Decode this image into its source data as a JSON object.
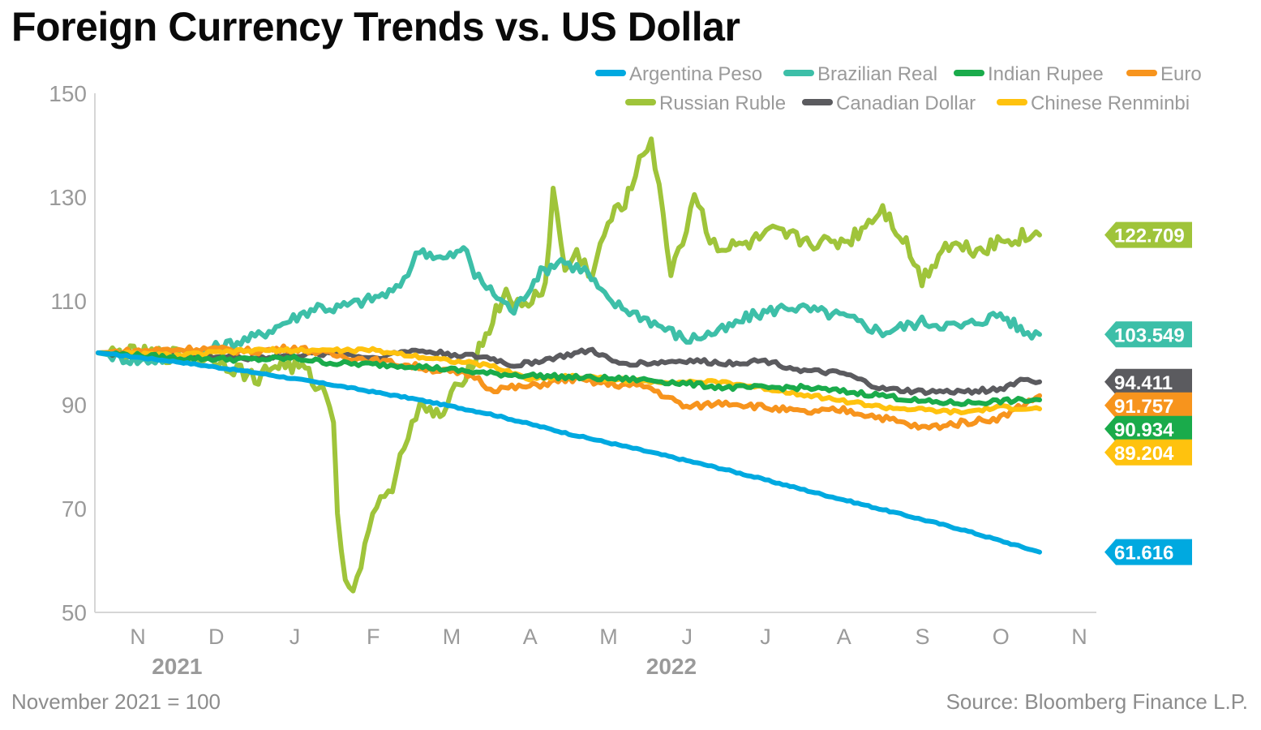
{
  "title": "Foreign Currency Trends vs. US Dollar",
  "footnote_left": "November 2021 = 100",
  "footnote_right": "Source: Bloomberg Finance L.P.",
  "chart_data": {
    "type": "line",
    "ylim": [
      50,
      150
    ],
    "yticks": [
      50,
      70,
      90,
      110,
      130,
      150
    ],
    "x_month_labels": [
      "N",
      "D",
      "J",
      "F",
      "M",
      "A",
      "M",
      "J",
      "J",
      "A",
      "S",
      "O",
      "N"
    ],
    "year_labels": [
      {
        "label": "2021",
        "month": "N"
      },
      {
        "label": "2022",
        "month": "M"
      }
    ],
    "grid": false,
    "legend": "top-right",
    "series": [
      {
        "name": "Argentina Peso",
        "color": "#00a9e0",
        "end_label": "61.616",
        "points": [
          [
            0,
            100
          ],
          [
            1,
            98.3
          ],
          [
            2,
            96.2
          ],
          [
            3,
            93.8
          ],
          [
            4,
            91.2
          ],
          [
            5,
            88.2
          ],
          [
            6,
            84.4
          ],
          [
            7,
            81
          ],
          [
            8,
            77.5
          ],
          [
            9,
            73.6
          ],
          [
            10,
            69.8
          ],
          [
            11,
            66
          ],
          [
            12,
            61.616
          ]
        ]
      },
      {
        "name": "Brazilian Real",
        "color": "#3dbfa8",
        "end_label": "103.549",
        "points": [
          [
            0,
            100
          ],
          [
            0.5,
            98.5
          ],
          [
            1,
            99
          ],
          [
            1.3,
            100
          ],
          [
            1.5,
            101
          ],
          [
            2,
            103
          ],
          [
            2.4,
            106
          ],
          [
            2.8,
            109
          ],
          [
            3,
            108.5
          ],
          [
            3.4,
            110
          ],
          [
            3.8,
            112
          ],
          [
            4,
            117
          ],
          [
            4.1,
            120
          ],
          [
            4.4,
            118
          ],
          [
            4.7,
            120
          ],
          [
            4.8,
            115
          ],
          [
            5,
            112
          ],
          [
            5.3,
            108
          ],
          [
            5.6,
            115
          ],
          [
            5.9,
            118
          ],
          [
            6,
            117
          ],
          [
            6.2,
            116
          ],
          [
            6.5,
            110
          ],
          [
            7,
            106.5
          ],
          [
            7.5,
            102.5
          ],
          [
            8,
            104.5
          ],
          [
            8.3,
            107
          ],
          [
            8.8,
            109
          ],
          [
            9.5,
            107
          ],
          [
            10,
            104
          ],
          [
            10.5,
            106
          ],
          [
            11,
            105
          ],
          [
            11.5,
            107.5
          ],
          [
            11.8,
            104
          ],
          [
            12,
            103.549
          ]
        ]
      },
      {
        "name": "Indian Rupee",
        "color": "#1aab4b",
        "end_label": "90.934",
        "points": [
          [
            0,
            100
          ],
          [
            1,
            99
          ],
          [
            2,
            98.7
          ],
          [
            2.5,
            99
          ],
          [
            3,
            98
          ],
          [
            4,
            97.5
          ],
          [
            5,
            96
          ],
          [
            6,
            95.3
          ],
          [
            7,
            94.8
          ],
          [
            8,
            93.3
          ],
          [
            9,
            93.3
          ],
          [
            10,
            91.8
          ],
          [
            10.5,
            90.6
          ],
          [
            11,
            90.3
          ],
          [
            11.5,
            90.7
          ],
          [
            12,
            90.934
          ]
        ]
      },
      {
        "name": "Euro",
        "color": "#f7941d",
        "end_label": "91.757",
        "points": [
          [
            0,
            100
          ],
          [
            0.7,
            100.5
          ],
          [
            1.3,
            100.8
          ],
          [
            2,
            100.3
          ],
          [
            2.5,
            101
          ],
          [
            3,
            99.6
          ],
          [
            4,
            97.5
          ],
          [
            4.8,
            95.5
          ],
          [
            5,
            93
          ],
          [
            5.5,
            93.5
          ],
          [
            6,
            95
          ],
          [
            6.5,
            94
          ],
          [
            7,
            93.5
          ],
          [
            7.5,
            89.5
          ],
          [
            8,
            90.5
          ],
          [
            9,
            88.5
          ],
          [
            9.5,
            89
          ],
          [
            10,
            87.5
          ],
          [
            10.5,
            85.5
          ],
          [
            11,
            86.5
          ],
          [
            11.5,
            87.5
          ],
          [
            12,
            91.757
          ]
        ]
      },
      {
        "name": "Russian Ruble",
        "color": "#9fc43a",
        "end_label": "122.709",
        "points": [
          [
            0,
            100
          ],
          [
            1,
            99.5
          ],
          [
            1.5,
            99
          ],
          [
            2,
            95
          ],
          [
            2.3,
            98
          ],
          [
            2.6,
            97
          ],
          [
            2.9,
            92
          ],
          [
            3,
            88
          ],
          [
            3.05,
            70
          ],
          [
            3.15,
            55
          ],
          [
            3.3,
            56
          ],
          [
            3.5,
            70
          ],
          [
            3.7,
            72
          ],
          [
            3.9,
            83
          ],
          [
            4.1,
            89
          ],
          [
            4.4,
            88
          ],
          [
            4.6,
            94
          ],
          [
            4.9,
            102
          ],
          [
            5.2,
            112
          ],
          [
            5.4,
            108
          ],
          [
            5.7,
            113
          ],
          [
            5.8,
            131
          ],
          [
            5.95,
            116
          ],
          [
            6.1,
            119
          ],
          [
            6.3,
            115
          ],
          [
            6.5,
            125
          ],
          [
            6.8,
            131
          ],
          [
            6.9,
            138
          ],
          [
            7.05,
            141
          ],
          [
            7.15,
            131
          ],
          [
            7.3,
            116
          ],
          [
            7.5,
            124
          ],
          [
            7.6,
            131
          ],
          [
            7.8,
            122
          ],
          [
            8,
            120
          ],
          [
            8.3,
            121
          ],
          [
            8.6,
            123
          ],
          [
            8.9,
            122
          ],
          [
            9.3,
            121
          ],
          [
            9.6,
            122
          ],
          [
            10,
            128
          ],
          [
            10.3,
            121
          ],
          [
            10.5,
            114
          ],
          [
            10.8,
            121
          ],
          [
            11.2,
            120
          ],
          [
            11.6,
            122
          ],
          [
            12,
            122.709
          ]
        ]
      },
      {
        "name": "Canadian Dollar",
        "color": "#5b5b5f",
        "end_label": "94.411",
        "points": [
          [
            0,
            100
          ],
          [
            1,
            99.5
          ],
          [
            2,
            99
          ],
          [
            3,
            100
          ],
          [
            3.5,
            99
          ],
          [
            4,
            100.5
          ],
          [
            5,
            99
          ],
          [
            5.3,
            97.5
          ],
          [
            5.8,
            99
          ],
          [
            6.3,
            100.5
          ],
          [
            6.6,
            98
          ],
          [
            7,
            98
          ],
          [
            7.5,
            98.5
          ],
          [
            8,
            98
          ],
          [
            8.5,
            98.5
          ],
          [
            9,
            96.5
          ],
          [
            9.5,
            96
          ],
          [
            10,
            93
          ],
          [
            10.5,
            92.5
          ],
          [
            11,
            92.5
          ],
          [
            11.5,
            93
          ],
          [
            11.8,
            95
          ],
          [
            12,
            94.411
          ]
        ]
      },
      {
        "name": "Chinese Renminbi",
        "color": "#ffc20e",
        "end_label": "89.204",
        "points": [
          [
            0,
            100
          ],
          [
            1,
            99.5
          ],
          [
            2,
            100.5
          ],
          [
            3,
            100.5
          ],
          [
            3.5,
            100.5
          ],
          [
            4,
            99.5
          ],
          [
            5,
            97.5
          ],
          [
            5.5,
            95
          ],
          [
            6,
            95.5
          ],
          [
            7,
            94.5
          ],
          [
            8,
            94.3
          ],
          [
            9,
            92
          ],
          [
            10,
            89.5
          ],
          [
            10.5,
            89
          ],
          [
            11,
            88.5
          ],
          [
            11.5,
            89.5
          ],
          [
            12,
            89.204
          ]
        ]
      }
    ]
  }
}
